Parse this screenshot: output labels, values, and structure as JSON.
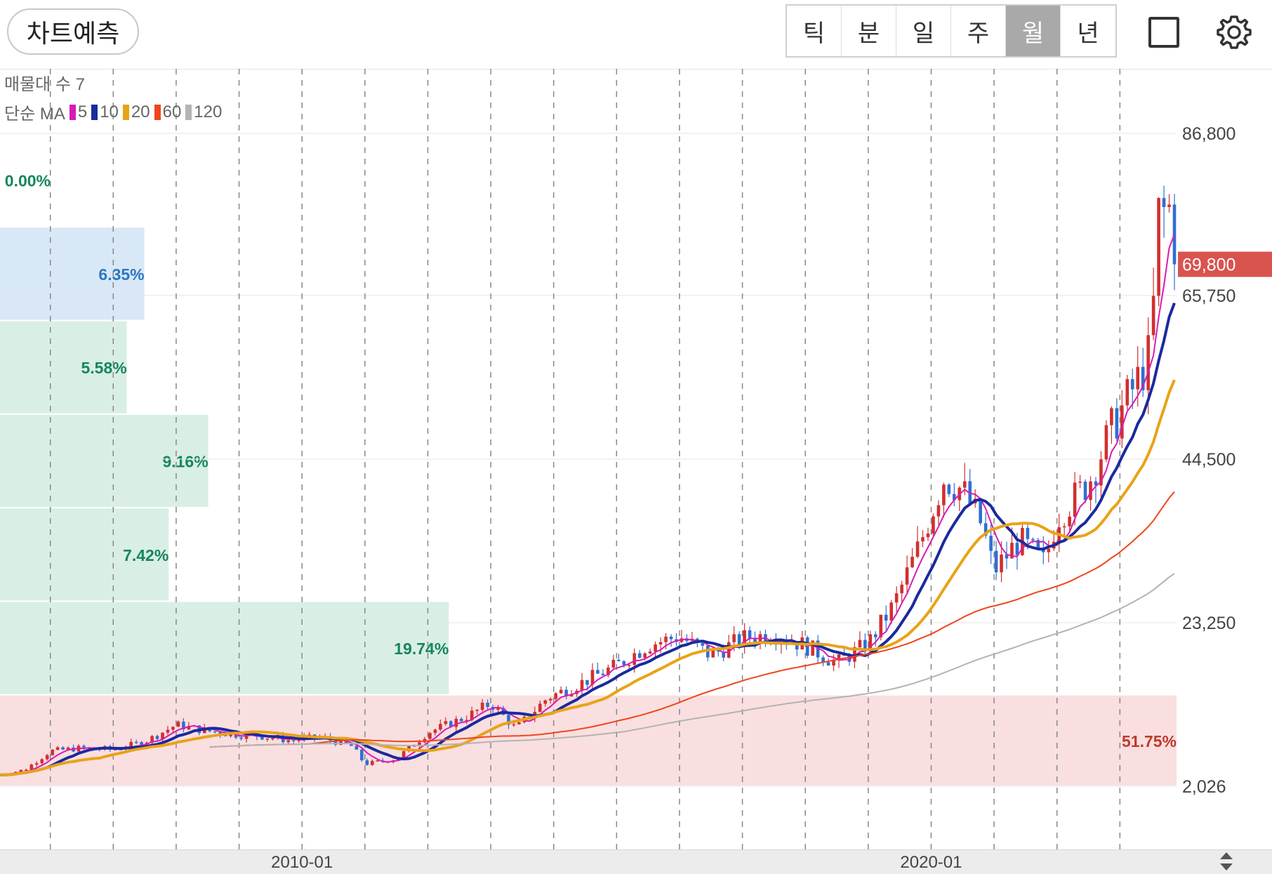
{
  "toolbar": {
    "predict_label": "차트예측",
    "periods": [
      "틱",
      "분",
      "일",
      "주",
      "월",
      "년"
    ],
    "active_period": "월",
    "icons": [
      "square-icon",
      "gear-icon"
    ]
  },
  "legend": {
    "volume_profile_label": "매물대 수 7",
    "ma_prefix": "단순 MA",
    "ma_items": [
      {
        "label": "5",
        "color": "#d81bb5"
      },
      {
        "label": "10",
        "color": "#1a2a9e"
      },
      {
        "label": "20",
        "color": "#e8a317"
      },
      {
        "label": "60",
        "color": "#f0451c"
      },
      {
        "label": "120",
        "color": "#b3b3b3"
      }
    ]
  },
  "colors": {
    "up": "#d22f2f",
    "down": "#2f6fd2",
    "current_price_bg": "#d9534f",
    "profile_top": "#d9e8f7",
    "profile_mid": "#d9efe6",
    "profile_bottom": "#f9dfe0",
    "label_blue": "#2b78c2",
    "label_green": "#16875a",
    "label_red": "#c0392b"
  },
  "chart_data": {
    "type": "candlestick",
    "period": "monthly",
    "y_axis_ticks": [
      "86,800",
      "65,750",
      "44,500",
      "23,250",
      "2,026"
    ],
    "y_axis_values": [
      86800,
      65750,
      44500,
      23250,
      2026
    ],
    "current_price": {
      "label": "69,800",
      "value": 69800
    },
    "x_axis_labels": [
      "2010-01",
      "2020-01"
    ],
    "x_range": [
      2005.2,
      2023.9
    ],
    "volume_profile": [
      {
        "label": "0.00%",
        "value": 0.0,
        "range": [
          74650,
          86800
        ]
      },
      {
        "label": "6.35%",
        "value": 6.35,
        "range": [
          62500,
          74650
        ]
      },
      {
        "label": "5.58%",
        "value": 5.58,
        "range": [
          50350,
          62500
        ]
      },
      {
        "label": "9.16%",
        "value": 9.16,
        "range": [
          38200,
          50350
        ]
      },
      {
        "label": "7.42%",
        "value": 7.42,
        "range": [
          26050,
          38200
        ]
      },
      {
        "label": "19.74%",
        "value": 19.74,
        "range": [
          13900,
          26050
        ]
      },
      {
        "label": "51.75%",
        "value": 51.75,
        "range": [
          2026,
          13900
        ]
      }
    ],
    "price_path": [
      [
        2005.2,
        3500
      ],
      [
        2005.6,
        4200
      ],
      [
        2006.0,
        6600
      ],
      [
        2006.5,
        7000
      ],
      [
        2007.0,
        6800
      ],
      [
        2007.5,
        7800
      ],
      [
        2008.0,
        10000
      ],
      [
        2008.5,
        9200
      ],
      [
        2009.0,
        8700
      ],
      [
        2009.3,
        8600
      ],
      [
        2009.8,
        8000
      ],
      [
        2010.3,
        8400
      ],
      [
        2010.8,
        7200
      ],
      [
        2011.0,
        4900
      ],
      [
        2011.5,
        5600
      ],
      [
        2012.0,
        9000
      ],
      [
        2012.6,
        11000
      ],
      [
        2013.0,
        12800
      ],
      [
        2013.4,
        9500
      ],
      [
        2013.9,
        13500
      ],
      [
        2014.4,
        15300
      ],
      [
        2015.0,
        17700
      ],
      [
        2015.5,
        20400
      ],
      [
        2016.0,
        21500
      ],
      [
        2016.5,
        19000
      ],
      [
        2017.0,
        21200
      ],
      [
        2017.5,
        21800
      ],
      [
        2018.0,
        20300
      ],
      [
        2018.5,
        18000
      ],
      [
        2019.0,
        20600
      ],
      [
        2019.4,
        25500
      ],
      [
        2019.8,
        33000
      ],
      [
        2020.2,
        42000
      ],
      [
        2020.5,
        40500
      ],
      [
        2020.8,
        36000
      ],
      [
        2021.0,
        30000
      ],
      [
        2021.4,
        34000
      ],
      [
        2021.8,
        31000
      ],
      [
        2022.0,
        37000
      ],
      [
        2022.5,
        41500
      ],
      [
        2022.9,
        49000
      ],
      [
        2023.3,
        55000
      ],
      [
        2023.5,
        58500
      ],
      [
        2023.6,
        76000
      ],
      [
        2023.8,
        77000
      ],
      [
        2023.9,
        69800
      ]
    ],
    "ma_series": [
      {
        "name": "5",
        "period": 5
      },
      {
        "name": "10",
        "period": 10
      },
      {
        "name": "20",
        "period": 20
      },
      {
        "name": "60",
        "period": 60
      },
      {
        "name": "120",
        "period": 120
      }
    ]
  }
}
